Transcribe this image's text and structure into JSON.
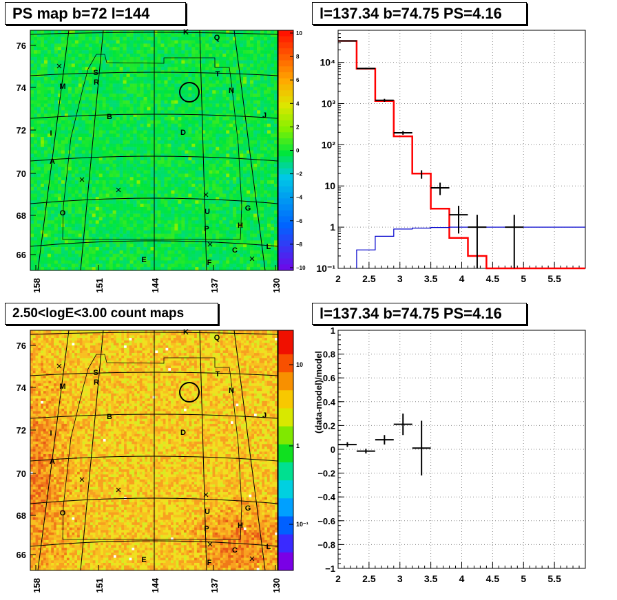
{
  "panels": {
    "ps_map": {
      "title": "PS map b=72 l=144"
    },
    "counts": {
      "title": "2.50<logE<3.00 count maps"
    },
    "spectrum": {
      "title": "l=137.34 b=74.75 PS=4.16"
    },
    "residual": {
      "title": "l=137.34 b=74.75 PS=4.16"
    }
  },
  "colors": {
    "data": "#000000",
    "model": "#ff0000",
    "background": "#0000cc"
  },
  "map_axes": {
    "x_ticks": [
      "158",
      "151",
      "144",
      "137",
      "130"
    ],
    "y_ticks": [
      "76",
      "74",
      "72",
      "70",
      "68",
      "66"
    ],
    "source_labels": [
      "K",
      "Q",
      "S",
      "R",
      "M",
      "T",
      "N",
      "B",
      "J",
      "I",
      "D",
      "A",
      "G",
      "O",
      "U",
      "H",
      "P",
      "C",
      "L",
      "E",
      "F"
    ]
  },
  "ps_colorbar": {
    "ticks": [
      "10",
      "8",
      "6",
      "4",
      "2",
      "0",
      "−2",
      "−4",
      "−6",
      "−8",
      "−10"
    ]
  },
  "count_colorbar": {
    "ticks": [
      "10",
      "1",
      "10⁻¹"
    ]
  },
  "chart_data": [
    {
      "type": "line",
      "title": "l=137.34 b=74.75 PS=4.16",
      "xlim": [
        2,
        6
      ],
      "ylim": [
        0.1,
        60000
      ],
      "yscale": "log",
      "xticks": [
        "2",
        "2.5",
        "3",
        "3.5",
        "4",
        "4.5",
        "5",
        "5.5"
      ],
      "yticks": [
        "10⁻¹",
        "1",
        "10",
        "10²",
        "10³",
        "10⁴"
      ],
      "grid": true,
      "series": [
        {
          "kind": "step",
          "color": "model",
          "edges": [
            2.0,
            2.3,
            2.6,
            2.9,
            3.2,
            3.5,
            3.8,
            4.1,
            4.4,
            6.0
          ],
          "values": [
            33000,
            7000,
            1150,
            160,
            20,
            2.8,
            0.55,
            0.2,
            0.1
          ]
        },
        {
          "kind": "step",
          "color": "background",
          "edges": [
            2.3,
            2.6,
            2.9,
            3.2,
            3.5,
            3.8,
            4.1,
            4.4,
            6.0
          ],
          "values": [
            0.28,
            0.6,
            0.9,
            0.95,
            0.98,
            1.0,
            1.0,
            1.0
          ]
        },
        {
          "kind": "errorbars",
          "color": "data",
          "points": [
            {
              "x": 2.15,
              "y": 33000,
              "xerr": 0.15,
              "ylo": 32000,
              "yhi": 34000
            },
            {
              "x": 2.45,
              "y": 7100,
              "xerr": 0.15,
              "ylo": 6800,
              "yhi": 7400
            },
            {
              "x": 2.75,
              "y": 1200,
              "xerr": 0.15,
              "ylo": 1100,
              "yhi": 1300
            },
            {
              "x": 3.05,
              "y": 195,
              "xerr": 0.15,
              "ylo": 175,
              "yhi": 215
            },
            {
              "x": 3.35,
              "y": 19,
              "xerr": 0.01,
              "ylo": 15,
              "yhi": 24
            },
            {
              "x": 3.65,
              "y": 9,
              "xerr": 0.15,
              "ylo": 6,
              "yhi": 12
            },
            {
              "x": 3.95,
              "y": 2,
              "xerr": 0.15,
              "ylo": 0.7,
              "yhi": 3.3
            },
            {
              "x": 4.25,
              "y": 1,
              "xerr": 0.15,
              "ylo": 0.1,
              "yhi": 2.0
            },
            {
              "x": 4.85,
              "y": 1,
              "xerr": 0.15,
              "ylo": 0.1,
              "yhi": 2.0
            }
          ]
        }
      ]
    },
    {
      "type": "scatter",
      "title": "l=137.34 b=74.75 PS=4.16",
      "ylabel": "(data-model)/model",
      "xlim": [
        2,
        6
      ],
      "ylim": [
        -1,
        1
      ],
      "xticks": [
        "2",
        "2.5",
        "3",
        "3.5",
        "4",
        "4.5",
        "5",
        "5.5"
      ],
      "yticks": [
        "−1",
        "−0.8",
        "−0.6",
        "−0.4",
        "−0.2",
        "0",
        "0.2",
        "0.4",
        "0.6",
        "0.8",
        "1"
      ],
      "grid": true,
      "points": [
        {
          "x": 2.15,
          "y": 0.04,
          "xerr": 0.15,
          "yerr": 0.02
        },
        {
          "x": 2.45,
          "y": -0.015,
          "xerr": 0.15,
          "yerr": 0.02
        },
        {
          "x": 2.75,
          "y": 0.08,
          "xerr": 0.15,
          "yerr": 0.04
        },
        {
          "x": 3.05,
          "y": 0.21,
          "xerr": 0.15,
          "yerr": 0.09
        },
        {
          "x": 3.35,
          "y": 0.01,
          "xerr": 0.15,
          "yerr": 0.23
        }
      ]
    }
  ]
}
